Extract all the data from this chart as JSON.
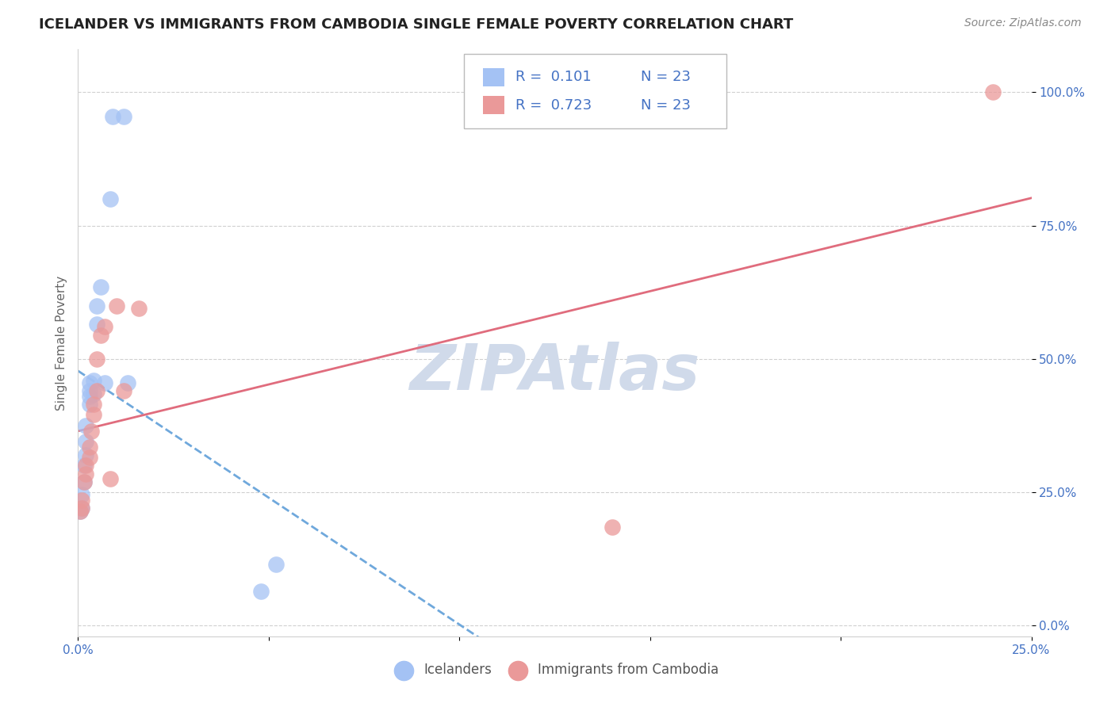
{
  "title": "ICELANDER VS IMMIGRANTS FROM CAMBODIA SINGLE FEMALE POVERTY CORRELATION CHART",
  "source": "Source: ZipAtlas.com",
  "ylabel": "Single Female Poverty",
  "ytick_labels": [
    "0.0%",
    "25.0%",
    "50.0%",
    "75.0%",
    "100.0%"
  ],
  "ytick_values": [
    0.0,
    0.25,
    0.5,
    0.75,
    1.0
  ],
  "xlim": [
    0.0,
    0.25
  ],
  "ylim": [
    -0.02,
    1.08
  ],
  "icelanders_x": [
    0.0005,
    0.001,
    0.001,
    0.0015,
    0.0015,
    0.002,
    0.002,
    0.002,
    0.003,
    0.003,
    0.003,
    0.003,
    0.004,
    0.004,
    0.005,
    0.005,
    0.006,
    0.007,
    0.0085,
    0.009,
    0.012,
    0.013,
    0.048,
    0.052
  ],
  "icelanders_y": [
    0.215,
    0.22,
    0.245,
    0.27,
    0.3,
    0.32,
    0.345,
    0.375,
    0.415,
    0.43,
    0.44,
    0.455,
    0.435,
    0.46,
    0.565,
    0.6,
    0.635,
    0.455,
    0.8,
    0.955,
    0.955,
    0.455,
    0.065,
    0.115
  ],
  "cambodia_x": [
    0.0005,
    0.001,
    0.001,
    0.0015,
    0.002,
    0.002,
    0.003,
    0.003,
    0.0035,
    0.004,
    0.004,
    0.005,
    0.005,
    0.006,
    0.007,
    0.0085,
    0.01,
    0.012,
    0.016,
    0.14,
    0.24
  ],
  "cambodia_y": [
    0.215,
    0.22,
    0.235,
    0.27,
    0.285,
    0.3,
    0.315,
    0.335,
    0.365,
    0.395,
    0.415,
    0.44,
    0.5,
    0.545,
    0.56,
    0.275,
    0.6,
    0.44,
    0.595,
    0.185,
    1.0
  ],
  "icelanders_R": 0.101,
  "icelanders_N": 23,
  "cambodia_R": 0.723,
  "cambodia_N": 23,
  "icelanders_color": "#a4c2f4",
  "cambodia_color": "#ea9999",
  "icelanders_line_color": "#6fa8dc",
  "cambodia_line_color": "#e06c7d",
  "watermark": "ZIPAtlas",
  "watermark_color": "#d0daea",
  "title_fontsize": 13,
  "axis_label_fontsize": 11,
  "tick_fontsize": 11,
  "legend_fontsize": 12,
  "source_fontsize": 10
}
